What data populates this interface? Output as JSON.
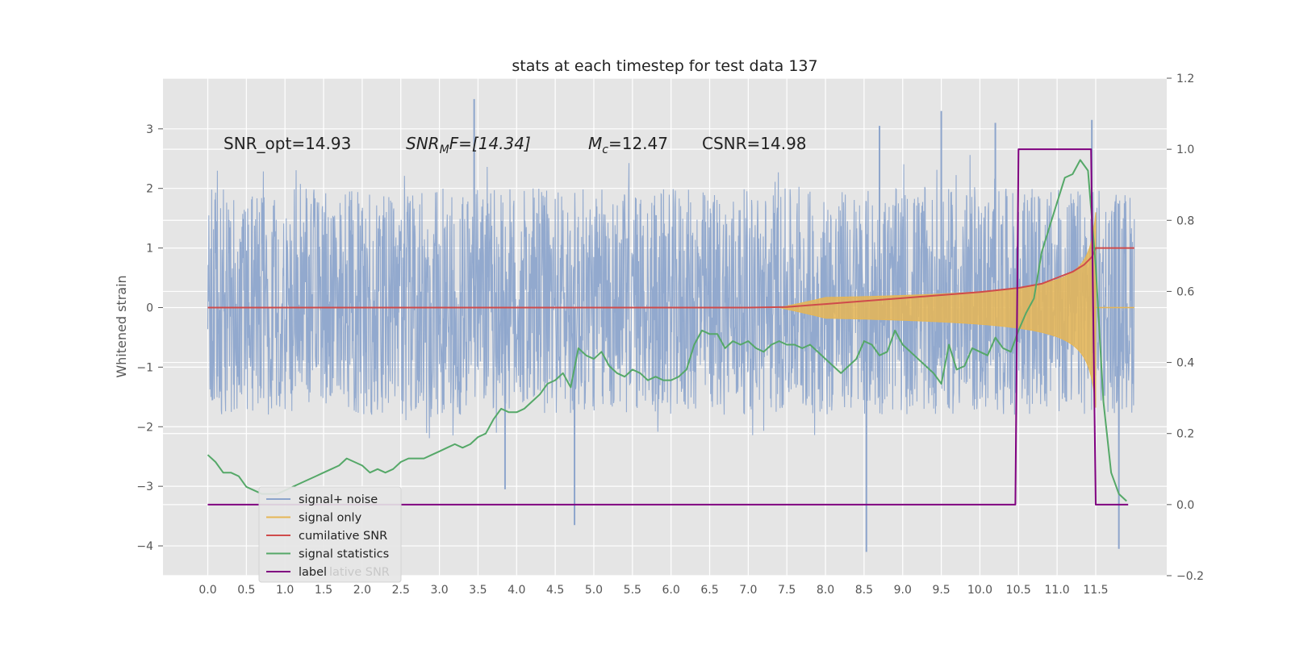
{
  "chart_data": {
    "type": "line",
    "title": "stats at each timestep for test data 137",
    "ylabel": "Whitened strain",
    "ylabel_right": "",
    "xlim": [
      -0.58,
      12.42
    ],
    "ylim": [
      -4.5,
      3.85
    ],
    "ylim_right": [
      -0.2,
      1.2
    ],
    "x_ticks": [
      0.0,
      0.5,
      1.0,
      1.5,
      2.0,
      2.5,
      3.0,
      3.5,
      4.0,
      4.5,
      5.0,
      5.5,
      6.0,
      6.5,
      7.0,
      7.5,
      8.0,
      8.5,
      9.0,
      9.5,
      10.0,
      10.5,
      11.0,
      11.5
    ],
    "x_tick_labels": [
      "0.0",
      "0.5",
      "1.0",
      "1.5",
      "2.0",
      "2.5",
      "3.0",
      "3.5",
      "4.0",
      "4.5",
      "5.0",
      "5.5",
      "6.0",
      "6.5",
      "7.0",
      "7.5",
      "8.0",
      "8.5",
      "9.0",
      "9.5",
      "10.0",
      "10.5",
      "11.0",
      "11.5"
    ],
    "y_ticks": [
      3,
      2,
      1,
      0,
      -1,
      -2,
      -3,
      -4
    ],
    "y_tick_labels": [
      "3",
      "2",
      "1",
      "0",
      "−1",
      "−2",
      "−3",
      "−4"
    ],
    "y_right_ticks": [
      1.2,
      1.0,
      0.8,
      0.6,
      0.4,
      0.2,
      0.0,
      -0.2
    ],
    "y_right_tick_labels": [
      "1.2",
      "1.0",
      "0.8",
      "0.6",
      "0.4",
      "0.2",
      "0.0",
      "−0.2"
    ],
    "grid": true,
    "legend_position": "lower-left",
    "legend_ghost_text": "lative SNR",
    "annotations": {
      "snr_opt": "SNR_opt=14.93",
      "snr_mf_base": "SNR",
      "snr_mf_sub": "M",
      "snr_mf_rest": "F=[14.34]",
      "mc_base": "M",
      "mc_sub": "c",
      "mc_rest": "=12.47",
      "csnr": "CSNR=14.98"
    },
    "series": [
      {
        "name": "signal+ noise",
        "axis": "left",
        "color": "#8da5cc",
        "kind": "noise",
        "x_range": [
          0.0,
          12.0
        ],
        "typical_envelope": [
          -1.8,
          2.0
        ],
        "notable_spikes": [
          {
            "x": 3.45,
            "y": 3.5
          },
          {
            "x": 9.5,
            "y": 3.3
          },
          {
            "x": 11.45,
            "y": 3.15
          },
          {
            "x": 10.2,
            "y": 3.1
          },
          {
            "x": 8.7,
            "y": 3.05
          },
          {
            "x": 4.75,
            "y": -3.65
          },
          {
            "x": 8.53,
            "y": -4.1
          },
          {
            "x": 11.8,
            "y": -4.05
          },
          {
            "x": 3.85,
            "y": -3.05
          }
        ]
      },
      {
        "name": "signal only",
        "axis": "left",
        "color": "#e6b655",
        "kind": "chirp",
        "x_start": 7.4,
        "x_peak": 11.5,
        "peak_amplitude": 1.6,
        "ringdown_end": 11.52
      },
      {
        "name": "cumilative SNR",
        "axis": "left",
        "color": "#cf4b4b",
        "x": [
          0.0,
          7.0,
          7.5,
          8.0,
          8.5,
          9.0,
          9.5,
          10.0,
          10.5,
          10.8,
          11.0,
          11.2,
          11.35,
          11.45,
          11.5,
          12.0
        ],
        "y": [
          0.0,
          0.0,
          0.01,
          0.06,
          0.11,
          0.16,
          0.21,
          0.26,
          0.33,
          0.4,
          0.5,
          0.6,
          0.72,
          0.85,
          1.0,
          1.0
        ]
      },
      {
        "name": "signal statistics",
        "axis": "right",
        "color": "#55a868",
        "x": [
          0.0,
          0.1,
          0.2,
          0.3,
          0.4,
          0.5,
          0.6,
          0.7,
          0.8,
          0.9,
          1.0,
          1.1,
          1.2,
          1.3,
          1.4,
          1.5,
          1.6,
          1.7,
          1.8,
          1.9,
          2.0,
          2.1,
          2.2,
          2.3,
          2.4,
          2.5,
          2.6,
          2.7,
          2.8,
          2.9,
          3.0,
          3.1,
          3.2,
          3.3,
          3.4,
          3.5,
          3.6,
          3.7,
          3.8,
          3.9,
          4.0,
          4.1,
          4.2,
          4.3,
          4.4,
          4.5,
          4.6,
          4.7,
          4.8,
          4.9,
          5.0,
          5.1,
          5.2,
          5.3,
          5.4,
          5.5,
          5.6,
          5.7,
          5.8,
          5.9,
          6.0,
          6.1,
          6.2,
          6.3,
          6.4,
          6.5,
          6.6,
          6.7,
          6.8,
          6.9,
          7.0,
          7.1,
          7.2,
          7.3,
          7.4,
          7.5,
          7.6,
          7.7,
          7.8,
          7.9,
          8.0,
          8.1,
          8.2,
          8.3,
          8.4,
          8.5,
          8.6,
          8.7,
          8.8,
          8.9,
          9.0,
          9.1,
          9.2,
          9.3,
          9.4,
          9.5,
          9.6,
          9.7,
          9.8,
          9.9,
          10.0,
          10.1,
          10.2,
          10.3,
          10.4,
          10.5,
          10.6,
          10.7,
          10.8,
          10.9,
          11.0,
          11.1,
          11.2,
          11.3,
          11.4,
          11.5,
          11.6,
          11.7,
          11.8,
          11.9
        ],
        "y": [
          0.14,
          0.12,
          0.09,
          0.09,
          0.08,
          0.05,
          0.04,
          0.03,
          0.03,
          0.03,
          0.04,
          0.05,
          0.06,
          0.07,
          0.08,
          0.09,
          0.1,
          0.11,
          0.13,
          0.12,
          0.11,
          0.09,
          0.1,
          0.09,
          0.1,
          0.12,
          0.13,
          0.13,
          0.13,
          0.14,
          0.15,
          0.16,
          0.17,
          0.16,
          0.17,
          0.19,
          0.2,
          0.24,
          0.27,
          0.26,
          0.26,
          0.27,
          0.29,
          0.31,
          0.34,
          0.35,
          0.37,
          0.33,
          0.44,
          0.42,
          0.41,
          0.43,
          0.39,
          0.37,
          0.36,
          0.38,
          0.37,
          0.35,
          0.36,
          0.35,
          0.35,
          0.36,
          0.38,
          0.45,
          0.49,
          0.48,
          0.48,
          0.44,
          0.46,
          0.45,
          0.46,
          0.44,
          0.43,
          0.45,
          0.46,
          0.45,
          0.45,
          0.44,
          0.45,
          0.43,
          0.41,
          0.39,
          0.37,
          0.39,
          0.41,
          0.46,
          0.45,
          0.42,
          0.43,
          0.49,
          0.45,
          0.43,
          0.41,
          0.39,
          0.37,
          0.34,
          0.45,
          0.38,
          0.39,
          0.44,
          0.43,
          0.42,
          0.47,
          0.44,
          0.43,
          0.49,
          0.54,
          0.58,
          0.71,
          0.78,
          0.85,
          0.92,
          0.93,
          0.97,
          0.94,
          0.67,
          0.29,
          0.09,
          0.03,
          0.01
        ]
      },
      {
        "name": "label",
        "axis": "right",
        "color": "#800080",
        "x": [
          0.0,
          10.46,
          10.5,
          11.44,
          11.5,
          11.92
        ],
        "y": [
          0.0,
          0.0,
          1.0,
          1.0,
          0.0,
          0.0
        ]
      }
    ]
  }
}
